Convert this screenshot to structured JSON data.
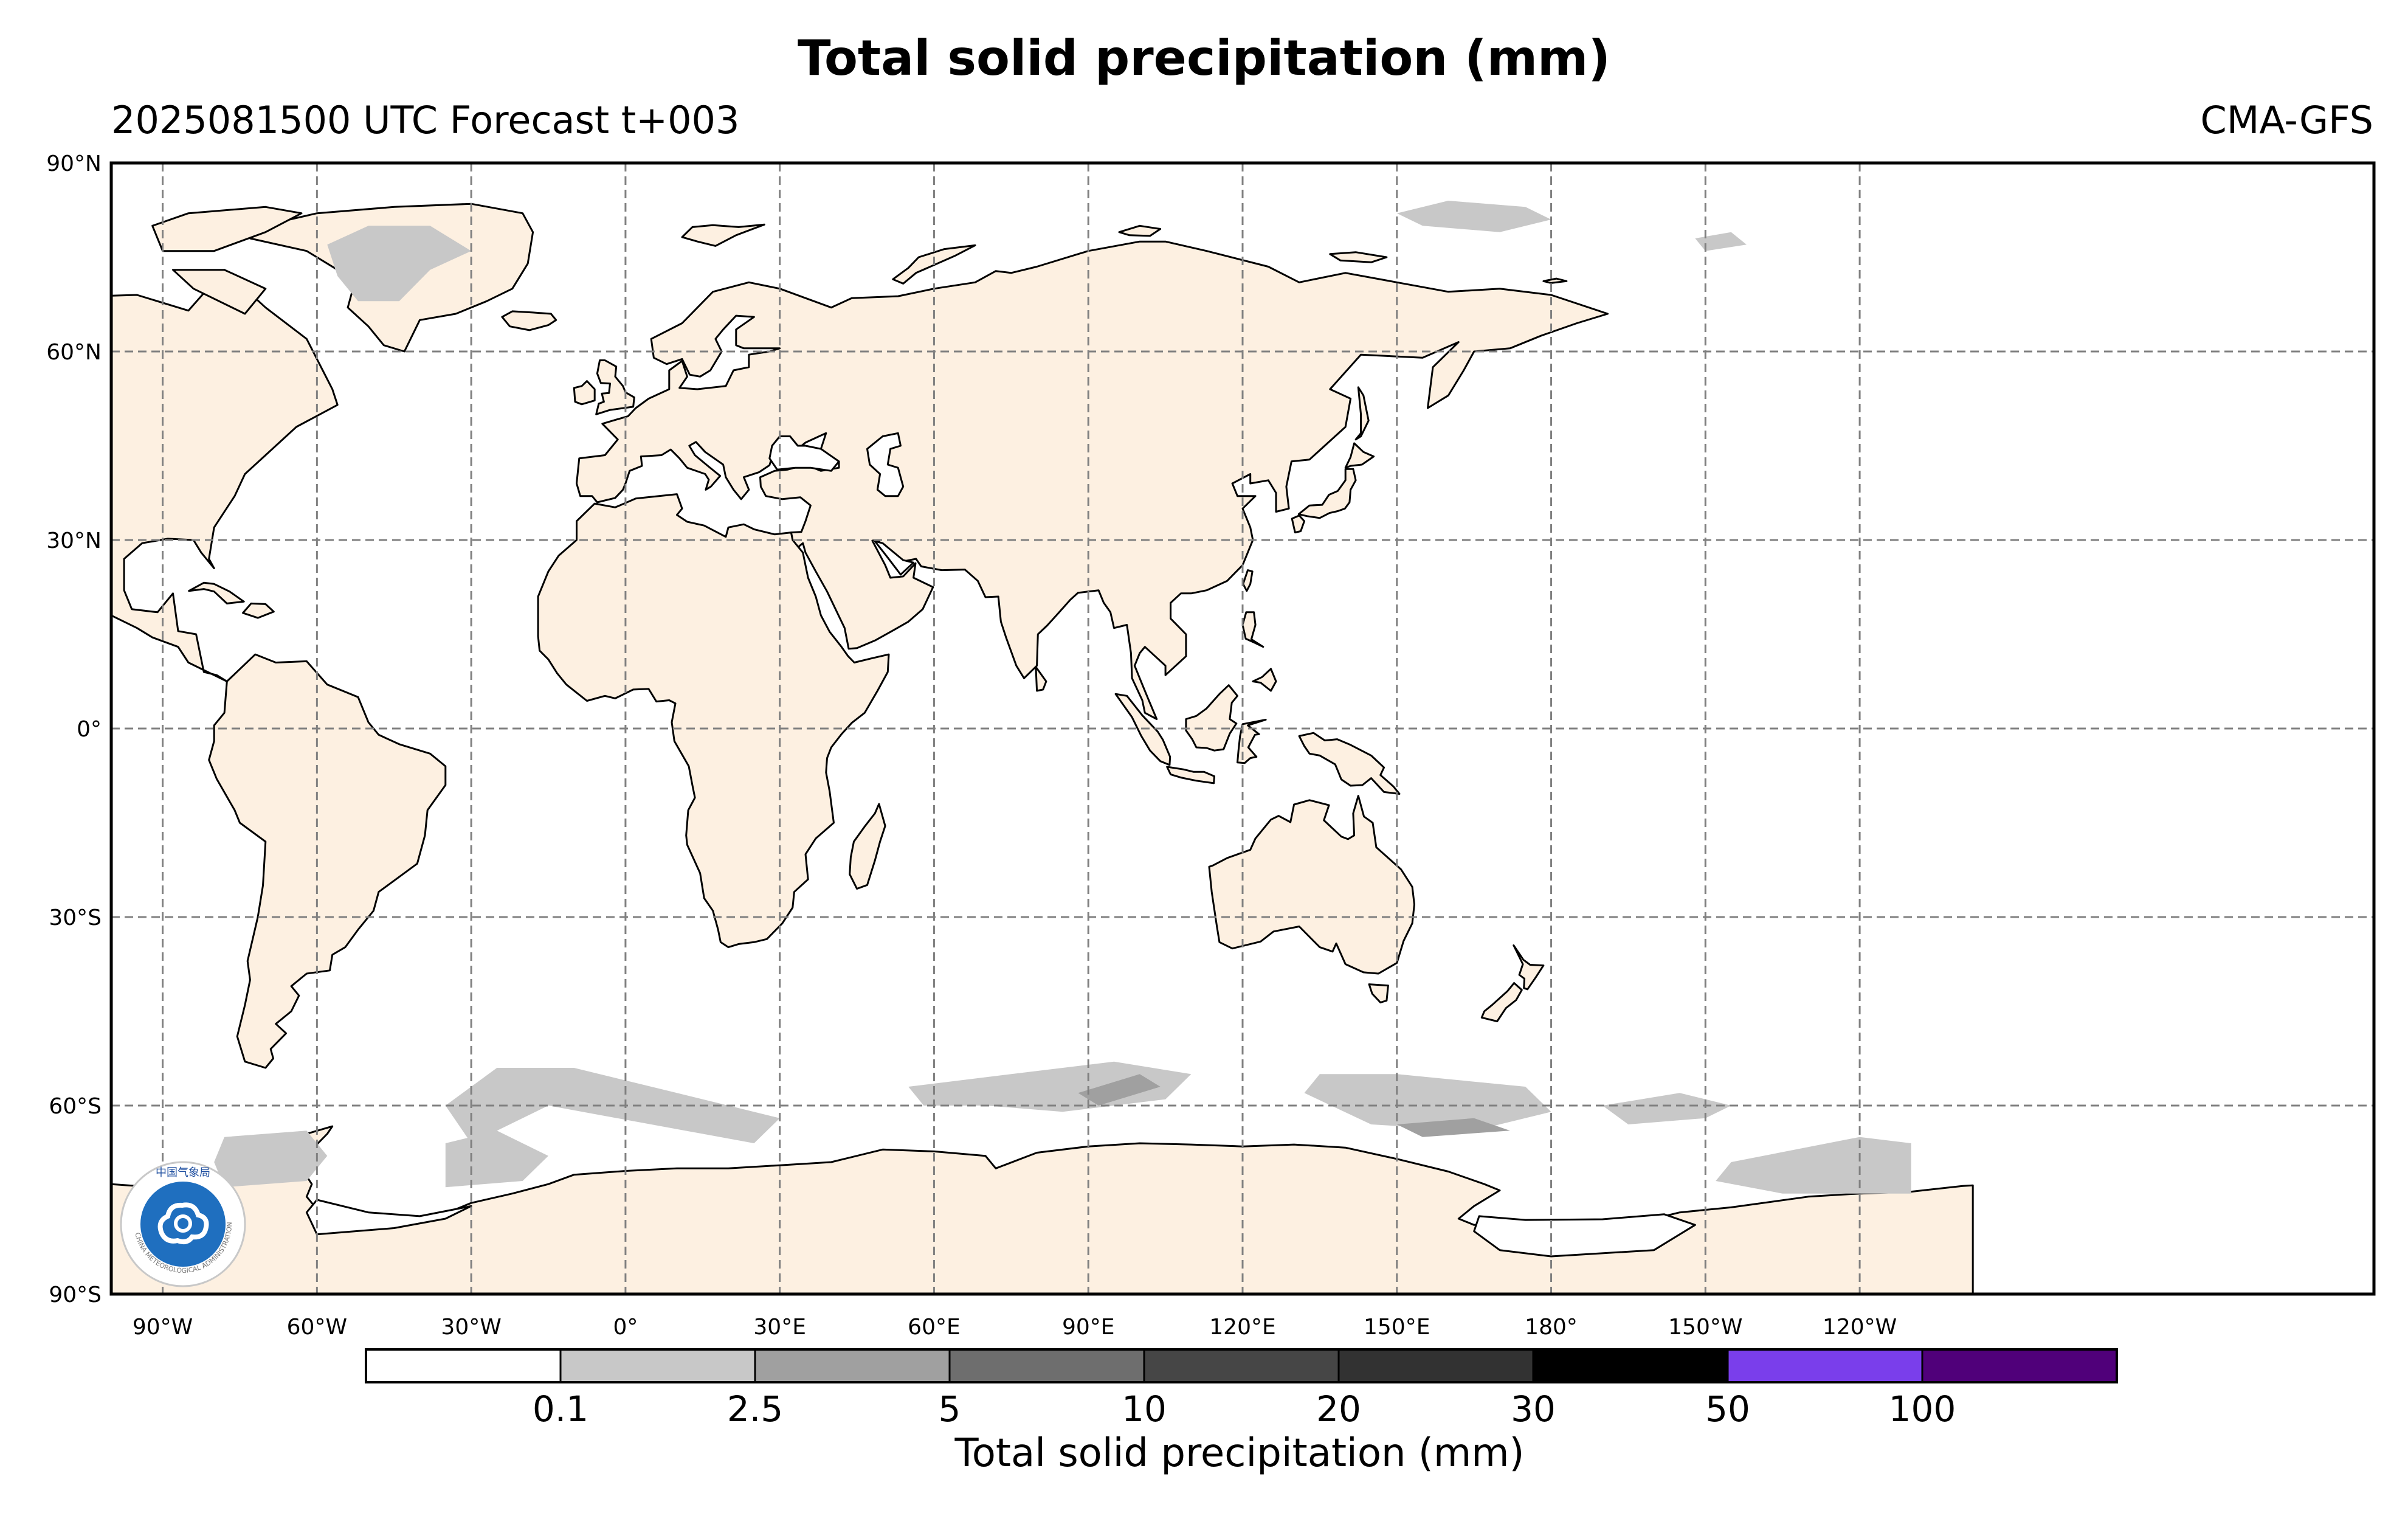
{
  "title": "Total solid precipitation (mm)",
  "forecast_label": "2025081500 UTC Forecast t+003",
  "model_label": "CMA-GFS",
  "map": {
    "projection": "PlateCarree",
    "central_longitude": 120,
    "lat_range": [
      -90,
      90
    ],
    "lon_range": [
      -100,
      340
    ],
    "lat_ticks": [
      {
        "value": 90,
        "label": "90°N"
      },
      {
        "value": 60,
        "label": "60°N"
      },
      {
        "value": 30,
        "label": "30°N"
      },
      {
        "value": 0,
        "label": "0°"
      },
      {
        "value": -30,
        "label": "30°S"
      },
      {
        "value": -60,
        "label": "60°S"
      },
      {
        "value": -90,
        "label": "90°S"
      }
    ],
    "lon_ticks": [
      {
        "value": -90,
        "label": "90°W"
      },
      {
        "value": -60,
        "label": "60°W"
      },
      {
        "value": -30,
        "label": "30°W"
      },
      {
        "value": 0,
        "label": "0°"
      },
      {
        "value": 30,
        "label": "30°E"
      },
      {
        "value": 60,
        "label": "60°E"
      },
      {
        "value": 90,
        "label": "90°E"
      },
      {
        "value": 120,
        "label": "120°E"
      },
      {
        "value": 150,
        "label": "150°E"
      },
      {
        "value": 180,
        "label": "180°"
      },
      {
        "value": 210,
        "label": "150°W"
      },
      {
        "value": 240,
        "label": "120°W"
      }
    ],
    "gridlines": true,
    "land_color": "#fdf0e1",
    "ocean_color": "#ffffff",
    "coastline_color": "#000000"
  },
  "precip_areas": [
    {
      "name": "greenland-snow",
      "class": "0.1-2.5",
      "points": [
        [
          -58,
          77
        ],
        [
          -50,
          80
        ],
        [
          -38,
          80
        ],
        [
          -30,
          76
        ],
        [
          -38,
          73
        ],
        [
          -44,
          68
        ],
        [
          -52,
          68
        ],
        [
          -56,
          72
        ]
      ]
    },
    {
      "name": "arctic-snow-siberia",
      "class": "0.1-2.5",
      "points": [
        [
          150,
          82
        ],
        [
          160,
          84
        ],
        [
          175,
          83
        ],
        [
          180,
          81
        ],
        [
          170,
          79
        ],
        [
          155,
          80
        ]
      ]
    },
    {
      "name": "arctic-snow-alaska",
      "class": "0.1-2.5",
      "points": [
        [
          208,
          78
        ],
        [
          215,
          79
        ],
        [
          218,
          77
        ],
        [
          210,
          76
        ]
      ]
    },
    {
      "name": "southern-band-atlantic",
      "class": "0.1-2.5",
      "points": [
        [
          -35,
          -60
        ],
        [
          -25,
          -54
        ],
        [
          -10,
          -54
        ],
        [
          10,
          -58
        ],
        [
          30,
          -62
        ],
        [
          25,
          -66
        ],
        [
          5,
          -63
        ],
        [
          -15,
          -60
        ],
        [
          -30,
          -66
        ]
      ]
    },
    {
      "name": "southern-band-indian",
      "class": "0.1-2.5",
      "points": [
        [
          55,
          -57
        ],
        [
          75,
          -55
        ],
        [
          95,
          -53
        ],
        [
          110,
          -55
        ],
        [
          105,
          -59
        ],
        [
          85,
          -61
        ],
        [
          70,
          -60
        ],
        [
          58,
          -60
        ]
      ]
    },
    {
      "name": "southern-band-pacific",
      "class": "0.1-2.5",
      "points": [
        [
          135,
          -55
        ],
        [
          150,
          -55
        ],
        [
          175,
          -57
        ],
        [
          180,
          -61
        ],
        [
          165,
          -64
        ],
        [
          145,
          -63
        ],
        [
          132,
          -58
        ]
      ]
    },
    {
      "name": "southern-band-east",
      "class": "0.1-2.5",
      "points": [
        [
          190,
          -60
        ],
        [
          205,
          -58
        ],
        [
          215,
          -60
        ],
        [
          210,
          -62
        ],
        [
          195,
          -63
        ]
      ]
    },
    {
      "name": "amundsen-snow",
      "class": "0.1-2.5",
      "points": [
        [
          215,
          -69
        ],
        [
          240,
          -65
        ],
        [
          250,
          -66
        ],
        [
          250,
          -74
        ],
        [
          225,
          -74
        ],
        [
          212,
          -72
        ]
      ]
    },
    {
      "name": "antarctic-peninsula-snow",
      "class": "0.1-2.5",
      "points": [
        [
          -78,
          -65
        ],
        [
          -62,
          -64
        ],
        [
          -58,
          -68
        ],
        [
          -62,
          -72
        ],
        [
          -78,
          -73
        ],
        [
          -80,
          -69
        ]
      ]
    },
    {
      "name": "weddell-snow",
      "class": "0.1-2.5",
      "points": [
        [
          -35,
          -66
        ],
        [
          -25,
          -64
        ],
        [
          -15,
          -68
        ],
        [
          -20,
          -72
        ],
        [
          -35,
          -73
        ]
      ]
    },
    {
      "name": "heavy-streak-indian",
      "class": "2.5-5",
      "points": [
        [
          88,
          -58
        ],
        [
          100,
          -55
        ],
        [
          104,
          -57
        ],
        [
          92,
          -60
        ]
      ]
    },
    {
      "name": "heavy-streak-pacific",
      "class": "2.5-5",
      "points": [
        [
          150,
          -63
        ],
        [
          165,
          -62
        ],
        [
          172,
          -64
        ],
        [
          155,
          -65
        ]
      ]
    }
  ],
  "colorbar": {
    "title": "Total solid precipitation (mm)",
    "colors": [
      "#ffffff",
      "#c8c8c8",
      "#a0a0a0",
      "#6e6e6e",
      "#464646",
      "#323232",
      "#000000",
      "#7a3eeb",
      "#50007a"
    ],
    "tick_labels": [
      "0.1",
      "2.5",
      "5",
      "10",
      "20",
      "30",
      "50",
      "100"
    ]
  },
  "logo": {
    "icon": "cma-emblem-icon",
    "text": "CHINA METEOROLOGICAL ADMINISTRATION",
    "chinese_text": "中国气象局"
  }
}
